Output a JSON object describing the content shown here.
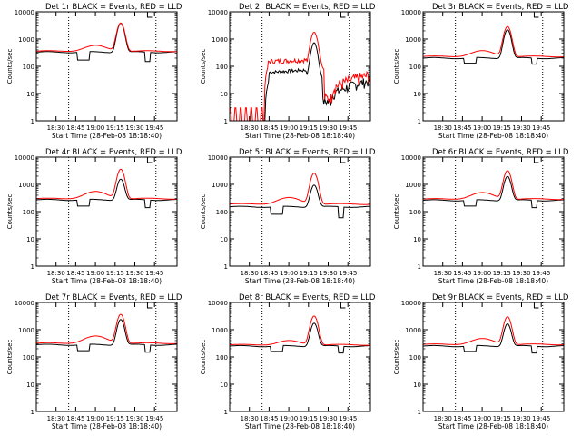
{
  "colors": {
    "events": "#000000",
    "lld": "#ff0000",
    "axes": "#000000"
  },
  "chart_data": [
    {
      "type": "line",
      "title": "Det 1r BLACK = Events, RED = LLD",
      "xlabel": "Start Time (28-Feb-08 18:18:40)",
      "ylabel": "Counts/sec",
      "yscale": "log",
      "ylim": [
        1,
        10000
      ],
      "yticks": [
        "1",
        "10",
        "100",
        "1000",
        "10000"
      ],
      "xticks": [
        "18:30",
        "18:45",
        "19:00",
        "19:15",
        "19:30",
        "19:45"
      ],
      "vlines": [
        0.23,
        0.85
      ],
      "events_base": 330,
      "lld_base": 360,
      "peak": 3500,
      "lld_peak": 3900,
      "lld_bump": 0.6,
      "dips": [
        [
          0.29,
          0.38,
          170
        ],
        [
          0.77,
          0.81,
          150
        ]
      ],
      "mode": "normal"
    },
    {
      "type": "line",
      "title": "Det 2r BLACK = Events, RED = LLD",
      "xlabel": "Start Time (28-Feb-08 18:18:40)",
      "ylabel": "Counts/sec",
      "yscale": "log",
      "ylim": [
        1,
        10000
      ],
      "yticks": [
        "1",
        "10",
        "100",
        "1000",
        "10000"
      ],
      "xticks": [
        "18:30",
        "18:45",
        "19:00",
        "19:15",
        "19:30",
        "19:45"
      ],
      "vlines": [
        0.23,
        0.85
      ],
      "events_base": 60,
      "lld_base": 150,
      "peak": 700,
      "lld_peak": 1700,
      "lld_bump": 0,
      "dips": [],
      "mode": "noisy"
    },
    {
      "type": "line",
      "title": "Det 3r BLACK = Events, RED = LLD",
      "xlabel": "Start Time (28-Feb-08 18:18:40)",
      "ylabel": "Counts/sec",
      "yscale": "log",
      "ylim": [
        1,
        10000
      ],
      "yticks": [
        "1",
        "10",
        "100",
        "1000",
        "10000"
      ],
      "xticks": [
        "18:30",
        "18:45",
        "19:00",
        "19:15",
        "19:30",
        "19:45"
      ],
      "vlines": [
        0.23,
        0.85
      ],
      "events_base": 200,
      "lld_base": 230,
      "peak": 2000,
      "lld_peak": 2900,
      "lld_bump": 0.6,
      "dips": [
        [
          0.29,
          0.38,
          130
        ],
        [
          0.77,
          0.81,
          120
        ]
      ],
      "mode": "normal"
    },
    {
      "type": "line",
      "title": "Det 4r BLACK = Events, RED = LLD",
      "xlabel": "Start Time (28-Feb-08 18:18:40)",
      "ylabel": "Counts/sec",
      "yscale": "log",
      "ylim": [
        1,
        10000
      ],
      "yticks": [
        "1",
        "10",
        "100",
        "1000",
        "10000"
      ],
      "xticks": [
        "18:30",
        "18:45",
        "19:00",
        "19:15",
        "19:30",
        "19:45"
      ],
      "vlines": [
        0.23,
        0.85
      ],
      "events_base": 270,
      "lld_base": 300,
      "peak": 1300,
      "lld_peak": 3600,
      "lld_bump": 0.8,
      "dips": [
        [
          0.29,
          0.38,
          160
        ],
        [
          0.77,
          0.81,
          140
        ]
      ],
      "mode": "normal"
    },
    {
      "type": "line",
      "title": "Det 5r BLACK = Events, RED = LLD",
      "xlabel": "Start Time (28-Feb-08 18:18:40)",
      "ylabel": "Counts/sec",
      "yscale": "log",
      "ylim": [
        1,
        10000
      ],
      "yticks": [
        "1",
        "10",
        "100",
        "1000",
        "10000"
      ],
      "xticks": [
        "18:30",
        "18:45",
        "19:00",
        "19:15",
        "19:30",
        "19:45"
      ],
      "vlines": [
        0.23,
        0.85
      ],
      "events_base": 150,
      "lld_base": 190,
      "peak": 800,
      "lld_peak": 2600,
      "lld_bump": 0.7,
      "dips": [
        [
          0.29,
          0.38,
          80
        ],
        [
          0.77,
          0.81,
          60
        ]
      ],
      "mode": "normal"
    },
    {
      "type": "line",
      "title": "Det 6r BLACK = Events, RED = LLD",
      "xlabel": "Start Time (28-Feb-08 18:18:40)",
      "ylabel": "Counts/sec",
      "yscale": "log",
      "ylim": [
        1,
        10000
      ],
      "yticks": [
        "1",
        "10",
        "100",
        "1000",
        "10000"
      ],
      "xticks": [
        "18:30",
        "18:45",
        "19:00",
        "19:15",
        "19:30",
        "19:45"
      ],
      "vlines": [
        0.23,
        0.85
      ],
      "events_base": 260,
      "lld_base": 290,
      "peak": 1700,
      "lld_peak": 3200,
      "lld_bump": 0.7,
      "dips": [
        [
          0.29,
          0.38,
          160
        ],
        [
          0.77,
          0.81,
          140
        ]
      ],
      "mode": "normal"
    },
    {
      "type": "line",
      "title": "Det 7r BLACK = Events, RED = LLD",
      "xlabel": "Start Time (28-Feb-08 18:18:40)",
      "ylabel": "Counts/sec",
      "yscale": "log",
      "ylim": [
        1,
        10000
      ],
      "yticks": [
        "1",
        "10",
        "100",
        "1000",
        "10000"
      ],
      "xticks": [
        "18:30",
        "18:45",
        "19:00",
        "19:15",
        "19:30",
        "19:45"
      ],
      "vlines": [
        0.23,
        0.85
      ],
      "events_base": 280,
      "lld_base": 320,
      "peak": 2100,
      "lld_peak": 3700,
      "lld_bump": 0.8,
      "dips": [
        [
          0.29,
          0.38,
          170
        ],
        [
          0.77,
          0.81,
          150
        ]
      ],
      "mode": "normal"
    },
    {
      "type": "line",
      "title": "Det 8r BLACK = Events, RED = LLD",
      "xlabel": "Start Time (28-Feb-08 18:18:40)",
      "ylabel": "Counts/sec",
      "yscale": "log",
      "ylim": [
        1,
        10000
      ],
      "yticks": [
        "1",
        "10",
        "100",
        "1000",
        "10000"
      ],
      "xticks": [
        "18:30",
        "18:45",
        "19:00",
        "19:15",
        "19:30",
        "19:45"
      ],
      "vlines": [
        0.23,
        0.85
      ],
      "events_base": 250,
      "lld_base": 280,
      "peak": 1500,
      "lld_peak": 3200,
      "lld_bump": 0.4,
      "dips": [
        [
          0.29,
          0.38,
          160
        ],
        [
          0.77,
          0.81,
          140
        ]
      ],
      "mode": "normal"
    },
    {
      "type": "line",
      "title": "Det 9r BLACK = Events, RED = LLD",
      "xlabel": "Start Time (28-Feb-08 18:18:40)",
      "ylabel": "Counts/sec",
      "yscale": "log",
      "ylim": [
        1,
        10000
      ],
      "yticks": [
        "1",
        "10",
        "100",
        "1000",
        "10000"
      ],
      "xticks": [
        "18:30",
        "18:45",
        "19:00",
        "19:15",
        "19:30",
        "19:45"
      ],
      "vlines": [
        0.23,
        0.85
      ],
      "events_base": 250,
      "lld_base": 290,
      "peak": 1400,
      "lld_peak": 3000,
      "lld_bump": 0.6,
      "dips": [
        [
          0.29,
          0.38,
          160
        ],
        [
          0.77,
          0.81,
          140
        ]
      ],
      "mode": "normal"
    }
  ]
}
